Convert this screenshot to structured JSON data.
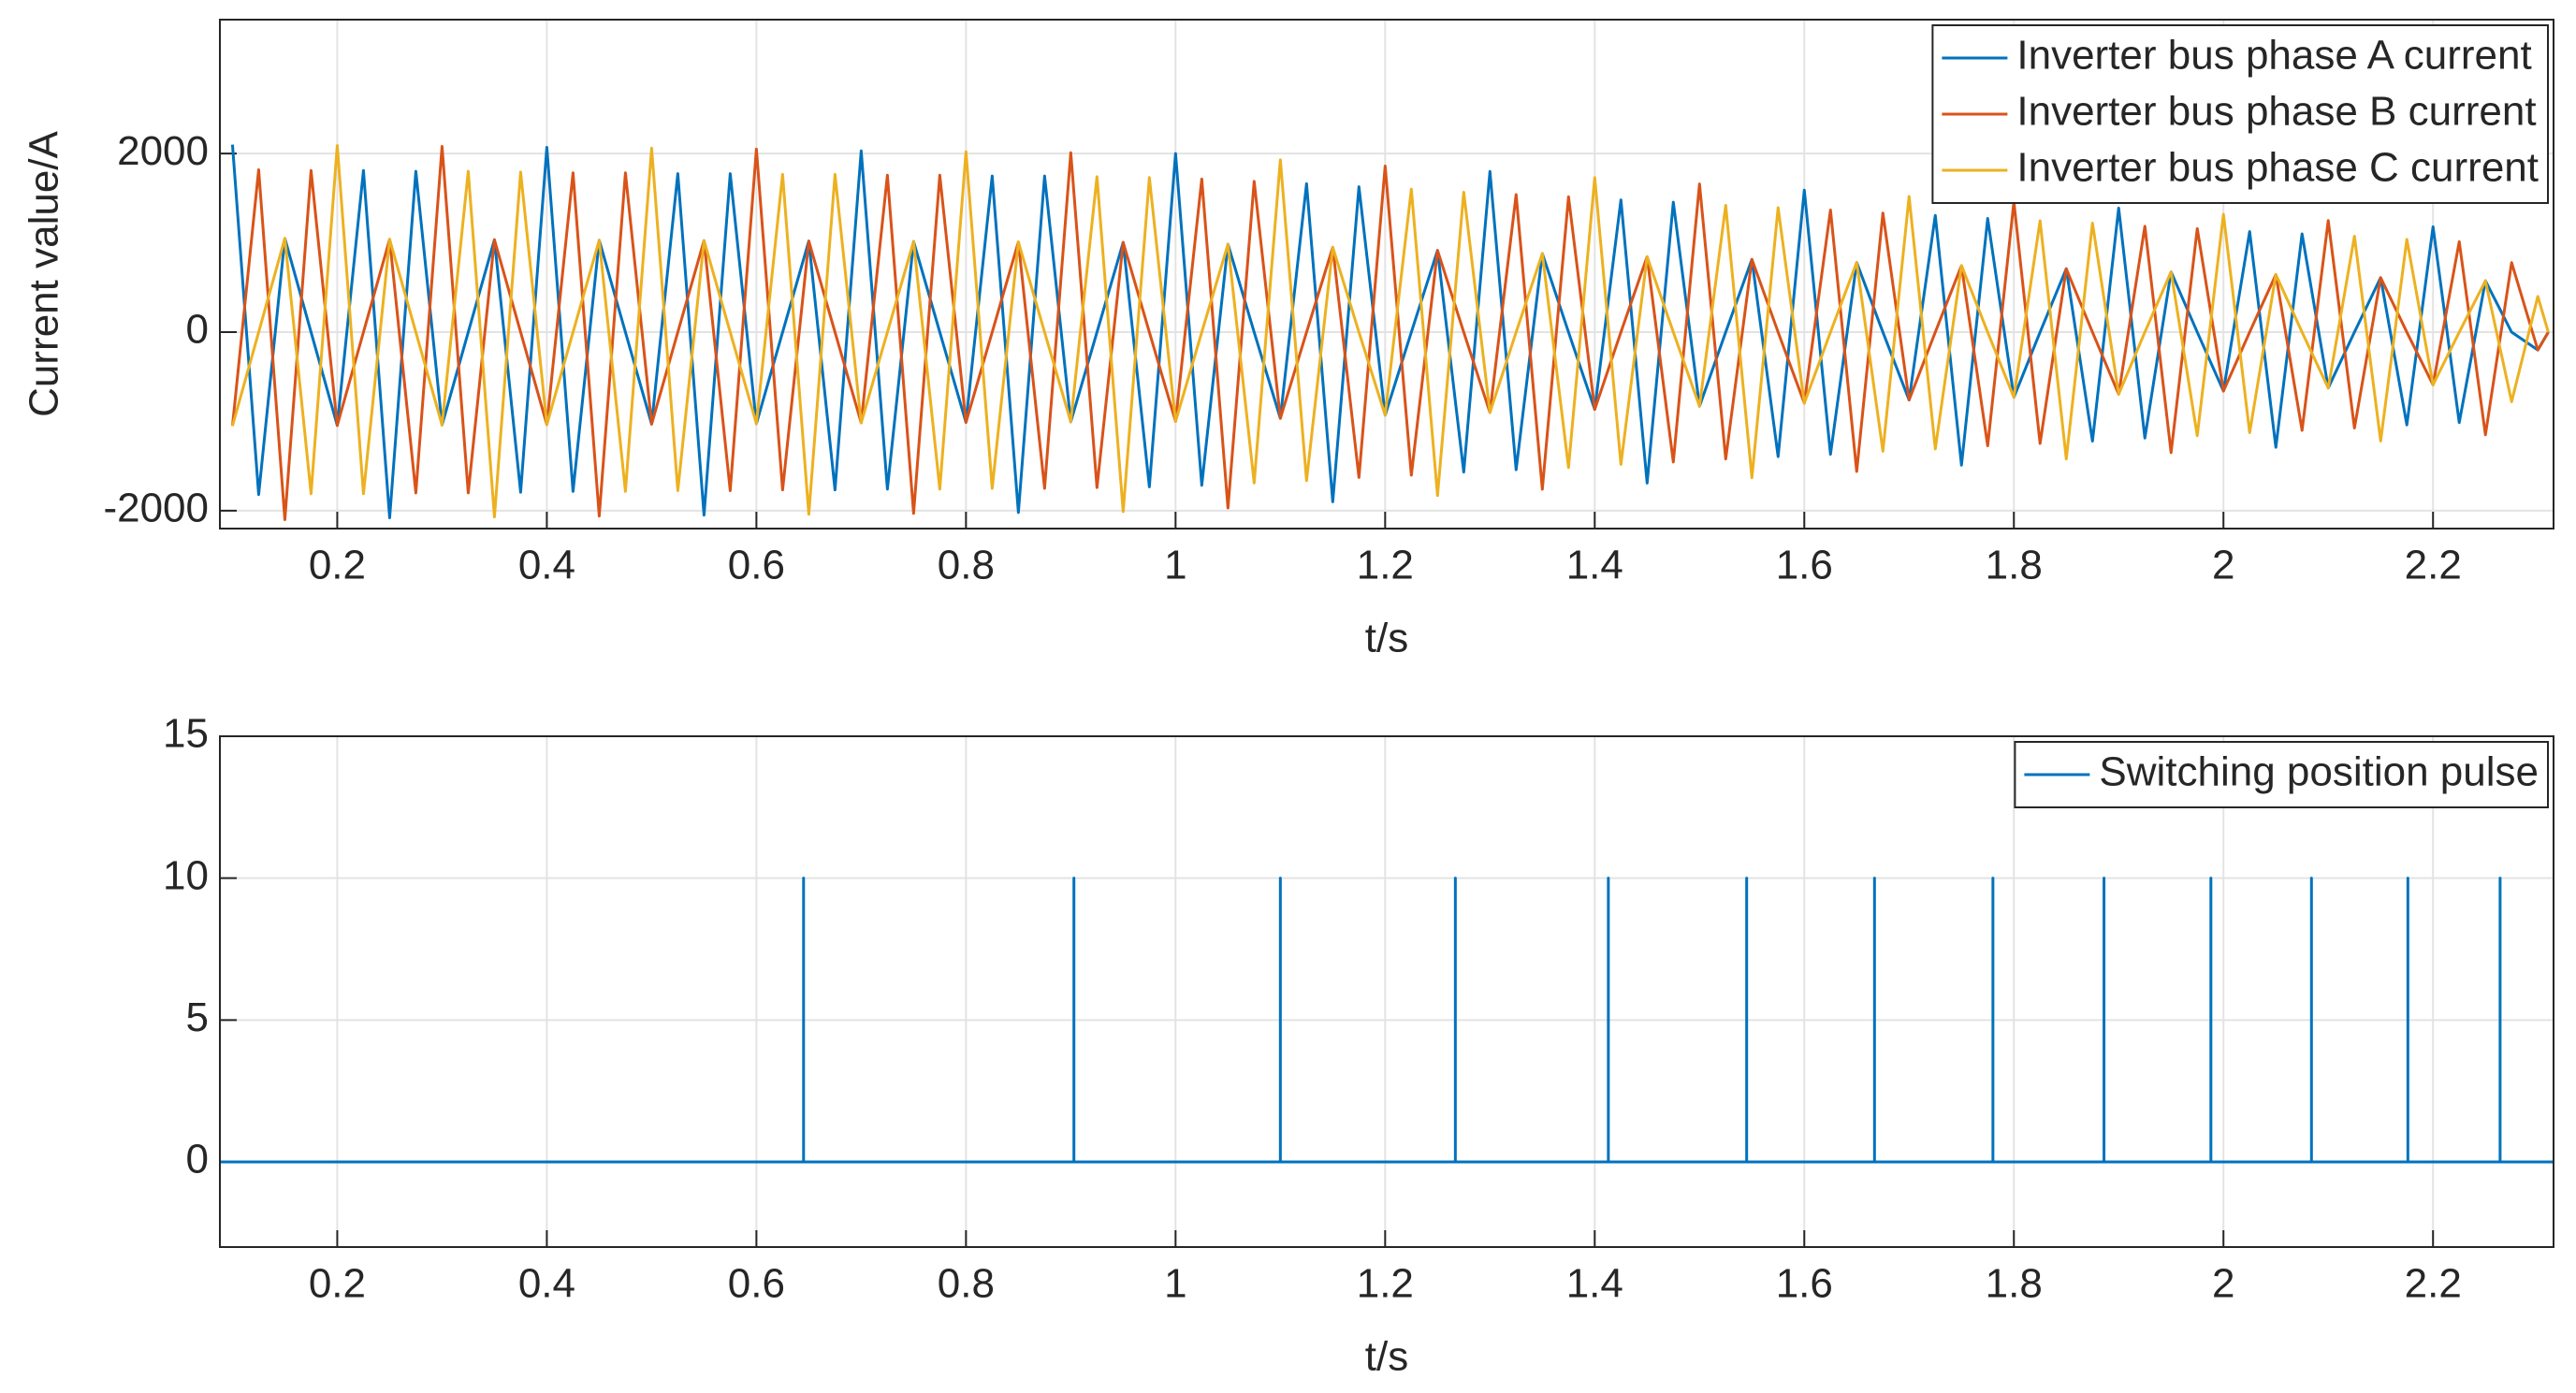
{
  "chart_data": [
    {
      "type": "line",
      "ylabel": "Current value/A",
      "xlabel": "t/s",
      "xlim": [
        0.088,
        2.315
      ],
      "xticks": [
        0.2,
        0.4,
        0.6,
        0.8,
        1,
        1.2,
        1.4,
        1.6,
        1.8,
        2,
        2.2
      ],
      "ylim": [
        -2200,
        3500
      ],
      "yticks": [
        -2000,
        0,
        2000
      ],
      "grid": true,
      "legend": "upper right",
      "x": [
        0.1,
        0.125,
        0.15,
        0.175,
        0.2,
        0.225,
        0.25,
        0.275,
        0.3,
        0.325,
        0.35,
        0.375,
        0.4,
        0.425,
        0.45,
        0.475,
        0.5,
        0.525,
        0.55,
        0.575,
        0.6,
        0.625,
        0.65,
        0.675,
        0.7,
        0.725,
        0.75,
        0.775,
        0.8,
        0.825,
        0.85,
        0.875,
        0.9,
        0.925,
        0.95,
        0.975,
        1,
        1.025,
        1.05,
        1.075,
        1.1,
        1.125,
        1.15,
        1.175,
        1.2,
        1.225,
        1.25,
        1.275,
        1.3,
        1.325,
        1.35,
        1.375,
        1.4,
        1.425,
        1.45,
        1.475,
        1.5,
        1.525,
        1.55,
        1.575,
        1.6,
        1.625,
        1.65,
        1.675,
        1.7,
        1.725,
        1.75,
        1.775,
        1.8,
        1.825,
        1.85,
        1.875,
        1.9,
        1.925,
        1.95,
        1.975,
        2,
        2.025,
        2.05,
        2.075,
        2.1,
        2.125,
        2.15,
        2.175,
        2.2,
        2.225,
        2.25,
        2.275,
        2.3,
        2.31
      ],
      "series": [
        {
          "name": "Inverter bus phase A current",
          "color": "#0072bd",
          "values": [
            2100,
            -1819,
            1050,
            0,
            -1045,
            1810,
            -2080,
            1801,
            -1040,
            0,
            1035,
            -1793,
            2070,
            -1784,
            1030,
            0,
            -1030,
            1775,
            -2050,
            1775,
            -1025,
            0,
            1020,
            -1767,
            2030,
            -1758,
            1015,
            0,
            -1010,
            1749,
            -2020,
            1749,
            -1005,
            0,
            1005,
            -1732,
            2000,
            -1715,
            985,
            0,
            -965,
            1663,
            -1900,
            1628,
            -930,
            0,
            915,
            -1567,
            1800,
            -1541,
            880,
            0,
            -865,
            1481,
            -1690,
            1455,
            -830,
            0,
            815,
            -1394,
            1590,
            -1368,
            780,
            0,
            -760,
            1308,
            -1490,
            1273,
            -730,
            0,
            710,
            -1221,
            1390,
            -1186,
            675,
            0,
            -660,
            1126,
            -1290,
            1100,
            -625,
            0,
            610,
            -1039,
            1180,
            -1013,
            575,
            0,
            -200,
            0
          ]
        },
        {
          "name": "Inverter bus phase B current",
          "color": "#d95319",
          "values": [
            -1050,
            1819,
            -2100,
            1810,
            -1045,
            0,
            1040,
            -1801,
            2080,
            -1801,
            1035,
            0,
            -1035,
            1784,
            -2060,
            1784,
            -1030,
            0,
            1025,
            -1775,
            2050,
            -1767,
            1020,
            0,
            -1015,
            1758,
            -2030,
            1758,
            -1010,
            0,
            1010,
            -1749,
            2010,
            -1741,
            1005,
            0,
            -1000,
            1715,
            -1970,
            1689,
            -965,
            0,
            950,
            -1628,
            1860,
            -1602,
            915,
            0,
            -900,
            1541,
            -1760,
            1516,
            -865,
            0,
            845,
            -1455,
            1660,
            -1420,
            815,
            0,
            -795,
            1368,
            -1560,
            1334,
            -760,
            0,
            745,
            -1273,
            1460,
            -1247,
            710,
            0,
            -695,
            1186,
            -1350,
            1160,
            -660,
            0,
            645,
            -1100,
            1250,
            -1074,
            610,
            0,
            -590,
            1013,
            -1150,
            779,
            -200,
            0
          ]
        },
        {
          "name": "Inverter bus phase C current",
          "color": "#edb120",
          "values": [
            -1050,
            0,
            1050,
            -1810,
            2090,
            -1810,
            1040,
            0,
            -1040,
            1801,
            -2070,
            1793,
            -1035,
            0,
            1030,
            -1784,
            2060,
            -1775,
            1025,
            0,
            -1025,
            1767,
            -2040,
            1767,
            -1015,
            0,
            1015,
            -1758,
            2020,
            -1749,
            1010,
            0,
            -1005,
            1741,
            -2010,
            1732,
            -1000,
            0,
            985,
            -1689,
            1930,
            -1663,
            950,
            0,
            -930,
            1602,
            -1830,
            1567,
            -900,
            0,
            880,
            -1516,
            1730,
            -1481,
            845,
            0,
            -830,
            1420,
            -1630,
            1394,
            -795,
            0,
            780,
            -1334,
            1520,
            -1308,
            745,
            0,
            -730,
            1247,
            -1420,
            1221,
            -695,
            0,
            675,
            -1160,
            1320,
            -1126,
            645,
            0,
            -625,
            1074,
            -1220,
            1039,
            -590,
            0,
            575,
            -779,
            400,
            0
          ]
        }
      ]
    },
    {
      "type": "line",
      "xlabel": "t/s",
      "xlim": [
        0.088,
        2.315
      ],
      "xticks": [
        0.2,
        0.4,
        0.6,
        0.8,
        1,
        1.2,
        1.4,
        1.6,
        1.8,
        2,
        2.2
      ],
      "ylim": [
        -3,
        15
      ],
      "yticks": [
        0,
        5,
        10,
        15
      ],
      "grid": true,
      "legend": "upper right",
      "x": [
        0.088,
        0.645,
        0.645,
        0.645,
        0.903,
        0.903,
        0.903,
        1.1,
        1.1,
        1.1,
        1.267,
        1.267,
        1.267,
        1.413,
        1.413,
        1.413,
        1.545,
        1.545,
        1.545,
        1.667,
        1.667,
        1.667,
        1.78,
        1.78,
        1.78,
        1.886,
        1.886,
        1.886,
        1.988,
        1.988,
        1.988,
        2.084,
        2.084,
        2.084,
        2.176,
        2.176,
        2.176,
        2.264,
        2.264,
        2.264,
        2.315
      ],
      "series": [
        {
          "name": "Switching position pulse",
          "color": "#0072bd",
          "values": [
            0,
            0,
            10,
            0,
            0,
            10,
            0,
            0,
            10,
            0,
            0,
            10,
            0,
            0,
            10,
            0,
            0,
            10,
            0,
            0,
            10,
            0,
            0,
            10,
            0,
            0,
            10,
            0,
            0,
            10,
            0,
            0,
            10,
            0,
            0,
            10,
            0,
            0,
            10,
            0,
            0
          ]
        }
      ]
    }
  ]
}
